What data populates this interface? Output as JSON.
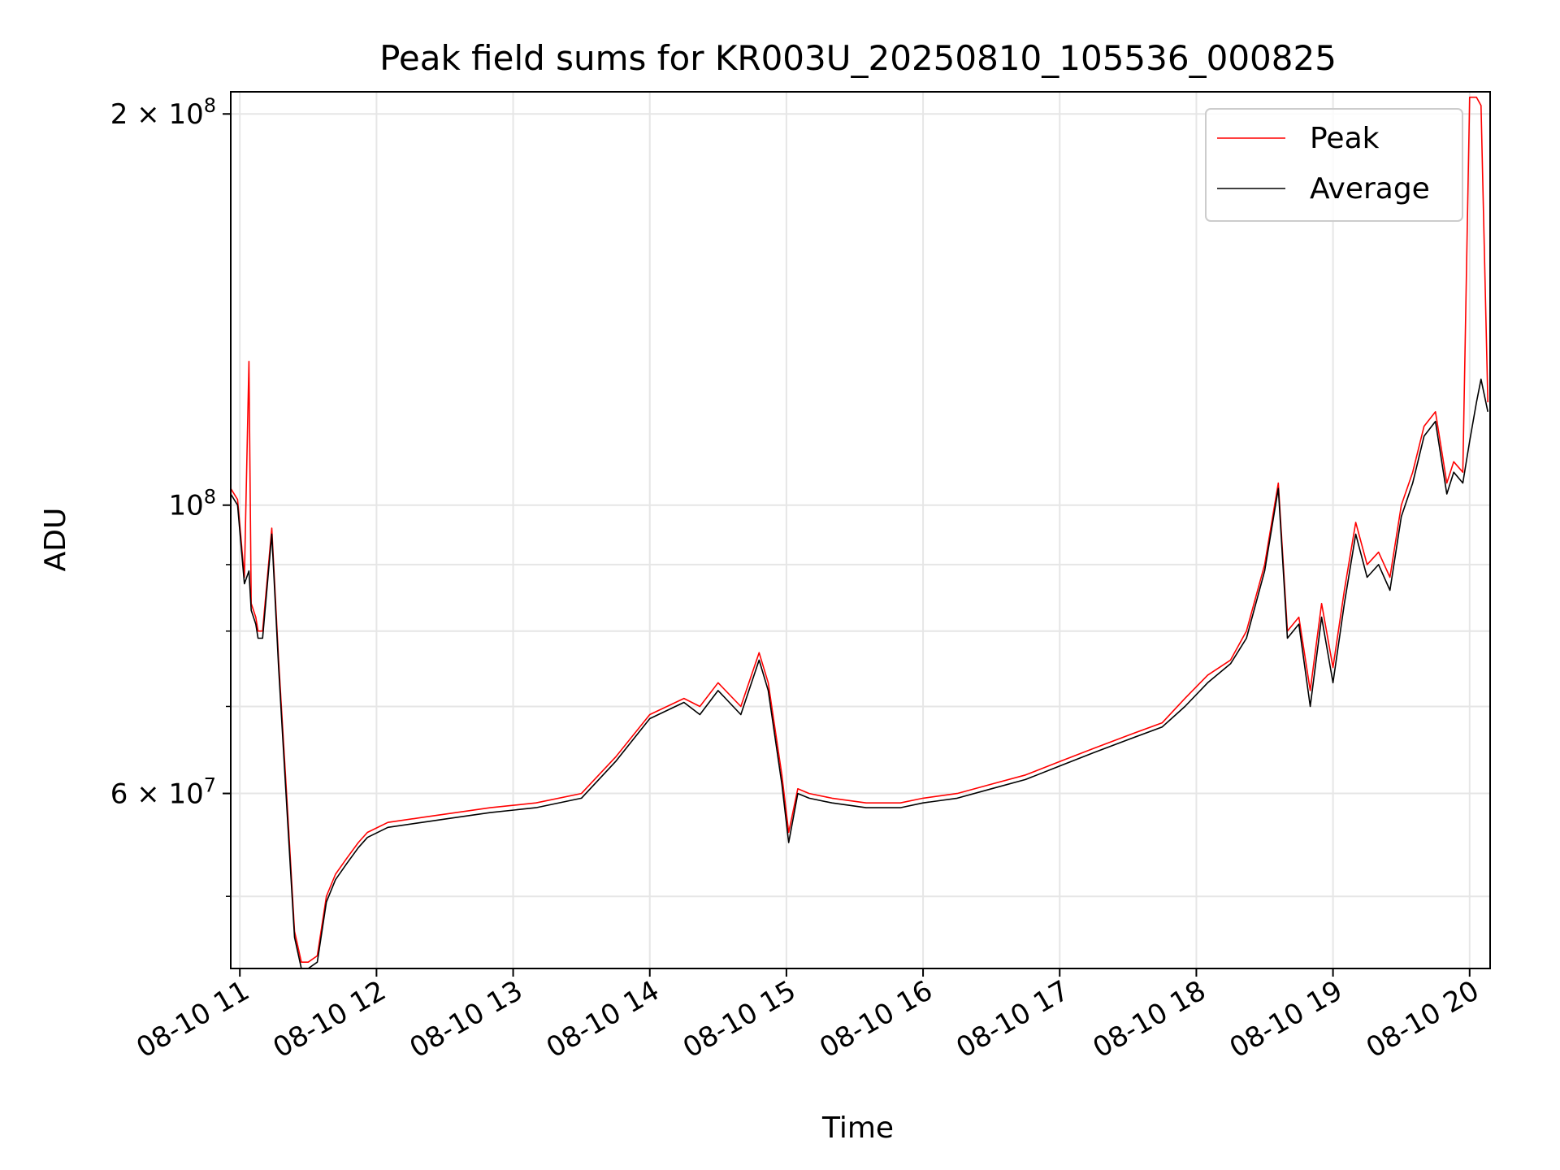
{
  "chart_data": {
    "type": "line",
    "title": "Peak field sums for KR003U_20250810_105536_000825",
    "xlabel": "Time",
    "ylabel": "ADU",
    "y_scale": "log",
    "ylim": [
      44000000,
      208000000
    ],
    "xlim": [
      "08-10 10:56",
      "08-10 20:09"
    ],
    "grid": true,
    "legend_position": "top-right",
    "x_tick_labels": [
      "08-10 11",
      "08-10 12",
      "08-10 13",
      "08-10 14",
      "08-10 15",
      "08-10 16",
      "08-10 17",
      "08-10 18",
      "08-10 19",
      "08-10 20"
    ],
    "x_tick_values": [
      "08-10 11:00",
      "08-10 12:00",
      "08-10 13:00",
      "08-10 14:00",
      "08-10 15:00",
      "08-10 16:00",
      "08-10 17:00",
      "08-10 18:00",
      "08-10 19:00",
      "08-10 20:00"
    ],
    "y_major_ticks": [
      {
        "value": 200000000,
        "label_mantissa": "2",
        "label_base": "10",
        "label_exp": "8"
      },
      {
        "value": 100000000,
        "label_mantissa": "",
        "label_base": "10",
        "label_exp": "8"
      },
      {
        "value": 60000000,
        "label_mantissa": "6",
        "label_base": "10",
        "label_exp": "7"
      }
    ],
    "y_minor_ticks": [
      50000000,
      70000000,
      80000000,
      90000000
    ],
    "series": [
      {
        "name": "Peak",
        "color": "#ff0000",
        "x": [
          "08-10 10:56",
          "08-10 10:59",
          "08-10 11:02",
          "08-10 11:04",
          "08-10 11:05",
          "08-10 11:06",
          "08-10 11:07",
          "08-10 11:08",
          "08-10 11:10",
          "08-10 11:14",
          "08-10 11:17",
          "08-10 11:21",
          "08-10 11:24",
          "08-10 11:27",
          "08-10 11:30",
          "08-10 11:34",
          "08-10 11:38",
          "08-10 11:42",
          "08-10 11:47",
          "08-10 11:52",
          "08-10 11:56",
          "08-10 12:05",
          "08-10 12:20",
          "08-10 12:35",
          "08-10 12:50",
          "08-10 13:10",
          "08-10 13:30",
          "08-10 13:45",
          "08-10 14:00",
          "08-10 14:15",
          "08-10 14:22",
          "08-10 14:30",
          "08-10 14:40",
          "08-10 14:48",
          "08-10 14:52",
          "08-10 14:58",
          "08-10 15:01",
          "08-10 15:05",
          "08-10 15:10",
          "08-10 15:20",
          "08-10 15:35",
          "08-10 15:50",
          "08-10 16:00",
          "08-10 16:15",
          "08-10 16:30",
          "08-10 16:45",
          "08-10 17:00",
          "08-10 17:15",
          "08-10 17:30",
          "08-10 17:45",
          "08-10 17:55",
          "08-10 18:05",
          "08-10 18:15",
          "08-10 18:22",
          "08-10 18:30",
          "08-10 18:36",
          "08-10 18:40",
          "08-10 18:45",
          "08-10 18:50",
          "08-10 18:55",
          "08-10 19:00",
          "08-10 19:05",
          "08-10 19:10",
          "08-10 19:15",
          "08-10 19:20",
          "08-10 19:25",
          "08-10 19:30",
          "08-10 19:35",
          "08-10 19:40",
          "08-10 19:45",
          "08-10 19:50",
          "08-10 19:53",
          "08-10 19:57",
          "08-10 20:00",
          "08-10 20:03",
          "08-10 20:05",
          "08-10 20:08"
        ],
        "values": [
          103000000,
          101000000,
          88000000,
          129000000,
          84000000,
          83000000,
          82000000,
          80000000,
          80000000,
          96000000,
          76000000,
          58000000,
          47000000,
          44500000,
          44500000,
          45000000,
          50000000,
          52000000,
          53500000,
          55000000,
          56000000,
          57000000,
          57500000,
          58000000,
          58500000,
          59000000,
          60000000,
          64000000,
          69000000,
          71000000,
          70000000,
          73000000,
          70000000,
          77000000,
          73000000,
          62000000,
          56000000,
          60500000,
          60000000,
          59500000,
          59000000,
          59000000,
          59500000,
          60000000,
          61000000,
          62000000,
          63500000,
          65000000,
          66500000,
          68000000,
          71000000,
          74000000,
          76000000,
          80000000,
          90000000,
          104000000,
          80000000,
          82000000,
          72000000,
          84000000,
          75000000,
          86000000,
          97000000,
          90000000,
          92000000,
          88000000,
          100000000,
          106000000,
          115000000,
          118000000,
          104000000,
          108000000,
          106000000,
          206000000,
          206000000,
          203000000,
          120000000
        ]
      },
      {
        "name": "Average",
        "color": "#000000",
        "x": [
          "08-10 10:56",
          "08-10 10:59",
          "08-10 11:02",
          "08-10 11:04",
          "08-10 11:05",
          "08-10 11:06",
          "08-10 11:07",
          "08-10 11:08",
          "08-10 11:10",
          "08-10 11:14",
          "08-10 11:17",
          "08-10 11:21",
          "08-10 11:24",
          "08-10 11:27",
          "08-10 11:30",
          "08-10 11:34",
          "08-10 11:38",
          "08-10 11:42",
          "08-10 11:47",
          "08-10 11:52",
          "08-10 11:56",
          "08-10 12:05",
          "08-10 12:20",
          "08-10 12:35",
          "08-10 12:50",
          "08-10 13:10",
          "08-10 13:30",
          "08-10 13:45",
          "08-10 14:00",
          "08-10 14:15",
          "08-10 14:22",
          "08-10 14:30",
          "08-10 14:40",
          "08-10 14:48",
          "08-10 14:52",
          "08-10 14:58",
          "08-10 15:01",
          "08-10 15:05",
          "08-10 15:10",
          "08-10 15:20",
          "08-10 15:35",
          "08-10 15:50",
          "08-10 16:00",
          "08-10 16:15",
          "08-10 16:30",
          "08-10 16:45",
          "08-10 17:00",
          "08-10 17:15",
          "08-10 17:30",
          "08-10 17:45",
          "08-10 17:55",
          "08-10 18:05",
          "08-10 18:15",
          "08-10 18:22",
          "08-10 18:30",
          "08-10 18:36",
          "08-10 18:40",
          "08-10 18:45",
          "08-10 18:50",
          "08-10 18:55",
          "08-10 19:00",
          "08-10 19:05",
          "08-10 19:10",
          "08-10 19:15",
          "08-10 19:20",
          "08-10 19:25",
          "08-10 19:30",
          "08-10 19:35",
          "08-10 19:40",
          "08-10 19:45",
          "08-10 19:50",
          "08-10 19:53",
          "08-10 19:57",
          "08-10 20:00",
          "08-10 20:03",
          "08-10 20:05",
          "08-10 20:08"
        ],
        "values": [
          102000000,
          100000000,
          87000000,
          89000000,
          83000000,
          82000000,
          81000000,
          79000000,
          79000000,
          95000000,
          75000000,
          57000000,
          46500000,
          44000000,
          44000000,
          44500000,
          49500000,
          51500000,
          53000000,
          54500000,
          55500000,
          56500000,
          57000000,
          57500000,
          58000000,
          58500000,
          59500000,
          63500000,
          68500000,
          70500000,
          69000000,
          72000000,
          69000000,
          76000000,
          72000000,
          61000000,
          55000000,
          60000000,
          59500000,
          59000000,
          58500000,
          58500000,
          59000000,
          59500000,
          60500000,
          61500000,
          63000000,
          64500000,
          66000000,
          67500000,
          70000000,
          73000000,
          75500000,
          79000000,
          89000000,
          103000000,
          79000000,
          81000000,
          70000000,
          82000000,
          73000000,
          84000000,
          95000000,
          88000000,
          90000000,
          86000000,
          98000000,
          104000000,
          113000000,
          116000000,
          102000000,
          106000000,
          104000000,
          112000000,
          120000000,
          125000000,
          118000000
        ]
      }
    ]
  }
}
